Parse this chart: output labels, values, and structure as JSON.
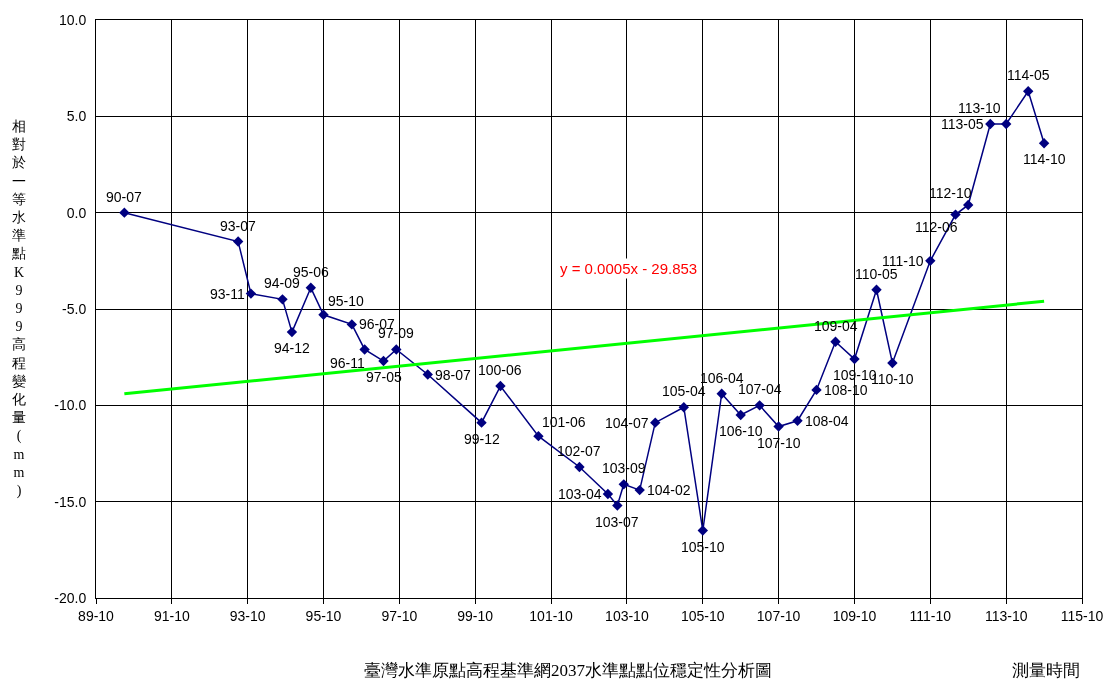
{
  "chart_data": {
    "type": "line",
    "title": "臺灣水準原點高程基準網2037水準點點位穩定性分析圖",
    "xlabel": "測量時間",
    "ylabel": "相對於一等水準點K999高程變化量(mm)",
    "xlim": [
      "2000-10",
      "2026-10"
    ],
    "xticks": [
      {
        "value": "2000-10",
        "label": "89-10"
      },
      {
        "value": "2002-10",
        "label": "91-10"
      },
      {
        "value": "2004-10",
        "label": "93-10"
      },
      {
        "value": "2006-10",
        "label": "95-10"
      },
      {
        "value": "2008-10",
        "label": "97-10"
      },
      {
        "value": "2010-10",
        "label": "99-10"
      },
      {
        "value": "2012-10",
        "label": "101-10"
      },
      {
        "value": "2014-10",
        "label": "103-10"
      },
      {
        "value": "2016-10",
        "label": "105-10"
      },
      {
        "value": "2018-10",
        "label": "107-10"
      },
      {
        "value": "2020-10",
        "label": "109-10"
      },
      {
        "value": "2022-10",
        "label": "111-10"
      },
      {
        "value": "2024-10",
        "label": "113-10"
      },
      {
        "value": "2026-10",
        "label": "115-10"
      }
    ],
    "ylim": [
      -20,
      10
    ],
    "yticks": [
      {
        "value": -20,
        "label": "-20.0"
      },
      {
        "value": -15,
        "label": "-15.0"
      },
      {
        "value": -10,
        "label": "-10.0"
      },
      {
        "value": -5,
        "label": "-5.0"
      },
      {
        "value": 0,
        "label": "0.0"
      },
      {
        "value": 5,
        "label": "5.0"
      },
      {
        "value": 10,
        "label": "10.0"
      }
    ],
    "grid": true,
    "series": [
      {
        "marker": "diamond",
        "color": "#000080",
        "x": [
          "2001-07",
          "2004-07",
          "2004-11",
          "2005-09",
          "2005-12",
          "2006-06",
          "2006-10",
          "2007-07",
          "2007-11",
          "2008-05",
          "2008-09",
          "2009-07",
          "2010-12",
          "2011-06",
          "2012-06",
          "2013-07",
          "2014-04",
          "2014-07",
          "2014-09",
          "2015-02",
          "2015-07",
          "2016-04",
          "2016-10",
          "2017-04",
          "2017-10",
          "2018-04",
          "2018-10",
          "2019-04",
          "2019-10",
          "2020-04",
          "2020-10",
          "2021-05",
          "2021-10",
          "2022-10",
          "2023-06",
          "2023-10",
          "2024-05",
          "2024-10",
          "2025-05",
          "2025-10"
        ],
        "values": [
          0.0,
          -1.5,
          -4.2,
          -4.5,
          -6.2,
          -3.9,
          -5.3,
          -5.8,
          -7.1,
          -7.7,
          -7.1,
          -8.4,
          -10.9,
          -9.0,
          -11.6,
          -13.2,
          -14.6,
          -15.2,
          -14.1,
          -14.4,
          -10.9,
          -10.1,
          -16.5,
          -9.4,
          -10.5,
          -10.0,
          -11.1,
          -10.8,
          -9.2,
          -6.7,
          -7.6,
          -4.0,
          -7.8,
          -2.5,
          -0.1,
          0.4,
          4.6,
          4.6,
          6.3,
          3.6
        ]
      },
      {
        "marker": "none",
        "color": "#00ff00",
        "x": [
          "2001-07",
          "2025-10"
        ],
        "values": [
          -9.4,
          -4.6
        ]
      }
    ],
    "annotations": [
      "y = 0.0005x - 29.853",
      {
        "text": "90-07",
        "x": "2001-07",
        "y": 0.0
      },
      {
        "text": "93-07",
        "x": "2004-07",
        "y": -1.5
      },
      {
        "text": "93-11",
        "x": "2004-11",
        "y": -4.2
      },
      {
        "text": "94-09",
        "x": "2005-09",
        "y": -4.5
      },
      {
        "text": "94-12",
        "x": "2005-12",
        "y": -6.2
      },
      {
        "text": "95-06",
        "x": "2006-06",
        "y": -3.9
      },
      {
        "text": "95-10",
        "x": "2006-10",
        "y": -5.3
      },
      {
        "text": "96-07",
        "x": "2007-07",
        "y": -5.8
      },
      {
        "text": "96-11",
        "x": "2007-11",
        "y": -7.1
      },
      {
        "text": "97-05",
        "x": "2008-05",
        "y": -7.7
      },
      {
        "text": "97-09",
        "x": "2008-09",
        "y": -7.1
      },
      {
        "text": "98-07",
        "x": "2009-07",
        "y": -8.4
      },
      {
        "text": "99-12",
        "x": "2010-12",
        "y": -10.9
      },
      {
        "text": "100-06",
        "x": "2011-06",
        "y": -9.0
      },
      {
        "text": "101-06",
        "x": "2012-06",
        "y": -11.6
      },
      {
        "text": "102-07",
        "x": "2013-07",
        "y": -13.2
      },
      {
        "text": "103-04",
        "x": "2014-04",
        "y": -14.6
      },
      {
        "text": "103-07",
        "x": "2014-07",
        "y": -15.2
      },
      {
        "text": "103-09",
        "x": "2014-09",
        "y": -14.1
      },
      {
        "text": "104-02",
        "x": "2015-02",
        "y": -14.4
      },
      {
        "text": "104-07",
        "x": "2015-07",
        "y": -10.9
      },
      {
        "text": "105-04",
        "x": "2016-04",
        "y": -10.1
      },
      {
        "text": "105-10",
        "x": "2016-10",
        "y": -16.5
      },
      {
        "text": "106-04",
        "x": "2017-04",
        "y": -9.4
      },
      {
        "text": "106-10",
        "x": "2017-10",
        "y": -10.5
      },
      {
        "text": "107-04",
        "x": "2018-04",
        "y": -10.0
      },
      {
        "text": "107-10",
        "x": "2018-10",
        "y": -11.1
      },
      {
        "text": "108-04",
        "x": "2019-04",
        "y": -10.8
      },
      {
        "text": "108-10",
        "x": "2019-10",
        "y": -9.2
      },
      {
        "text": "109-04",
        "x": "2020-04",
        "y": -6.7
      },
      {
        "text": "109-10",
        "x": "2020-10",
        "y": -7.6
      },
      {
        "text": "110-05",
        "x": "2021-05",
        "y": -4.0
      },
      {
        "text": "110-10",
        "x": "2021-10",
        "y": -7.8
      },
      {
        "text": "111-10",
        "x": "2022-10",
        "y": -2.5
      },
      {
        "text": "112-06",
        "x": "2023-06",
        "y": -0.1
      },
      {
        "text": "112-10",
        "x": "2023-10",
        "y": 0.4
      },
      {
        "text": "113-05",
        "x": "2024-05",
        "y": 4.6
      },
      {
        "text": "113-10",
        "x": "2024-10",
        "y": 4.6
      },
      {
        "text": "114-05",
        "x": "2025-05",
        "y": 6.3
      },
      {
        "text": "114-10",
        "x": "2025-10",
        "y": 3.6
      }
    ]
  }
}
